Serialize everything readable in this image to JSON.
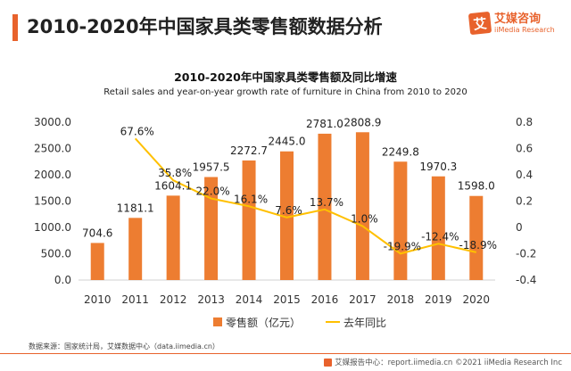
{
  "header": {
    "title": "2010-2020年中国家具类零售额数据分析"
  },
  "logo": {
    "glyph": "艾",
    "name_cn": "艾媒咨询",
    "name_en": "iiMedia Research"
  },
  "chart_data": {
    "type": "bar",
    "title": "2010-2020年中国家具类零售额及同比增速",
    "subtitle": "Retail sales and year-on-year growth rate of furniture in China from 2010 to 2020",
    "categories": [
      "2010",
      "2011",
      "2012",
      "2013",
      "2014",
      "2015",
      "2016",
      "2017",
      "2018",
      "2019",
      "2020"
    ],
    "series": [
      {
        "name": "零售额（亿元）",
        "type": "bar",
        "axis": "left",
        "color": "#ed7d31",
        "values": [
          704.6,
          1181.1,
          1604.1,
          1957.5,
          2272.7,
          2445.0,
          2781.0,
          2808.9,
          2249.8,
          1970.3,
          1598.0
        ],
        "labels": [
          "704.6",
          "1181.1",
          "1604.1",
          "1957.5",
          "2272.7",
          "2445.0",
          "2781.0",
          "2808.9",
          "2249.8",
          "1970.3",
          "1598.0"
        ]
      },
      {
        "name": "去年同比",
        "type": "line",
        "axis": "right",
        "color": "#ffc000",
        "values": [
          null,
          0.676,
          0.358,
          0.22,
          0.161,
          0.076,
          0.137,
          0.01,
          -0.199,
          -0.124,
          -0.189
        ],
        "labels": [
          null,
          "67.6%",
          "35.8%",
          "22.0%",
          "16.1%",
          "7.6%",
          "13.7%",
          "1.0%",
          "-19.9%",
          "-12.4%",
          "-18.9%"
        ]
      }
    ],
    "y_left": {
      "min": 0,
      "max": 3000,
      "ticks": [
        "0.0",
        "500.0",
        "1000.0",
        "1500.0",
        "2000.0",
        "2500.0",
        "3000.0"
      ]
    },
    "y_right": {
      "min": -0.4,
      "max": 0.8,
      "ticks": [
        "-0.4",
        "-0.2",
        "0",
        "0.2",
        "0.4",
        "0.6",
        "0.8"
      ]
    },
    "grid": false,
    "legend_position": "bottom"
  },
  "footer": {
    "source": "数据来源：国家统计局，艾媒数据中心（data.iimedia.cn）",
    "copyright": "艾媒报告中心：report.iimedia.cn ©2021  iiMedia Research  Inc"
  }
}
